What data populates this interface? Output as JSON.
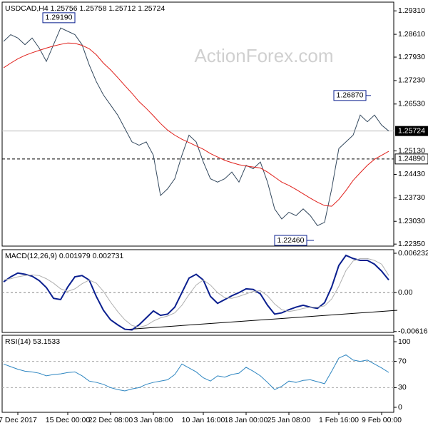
{
  "chart_data": [
    {
      "type": "line",
      "title": "USDCAD,H4  1.25756  1.25758  1.25712  1.25724",
      "watermark": "ActionForex.com",
      "ylim": [
        1.2229,
        1.2957
      ],
      "yticks": [
        {
          "value": 1.2931,
          "label": "1.29310"
        },
        {
          "value": 1.2861,
          "label": "1.28610"
        },
        {
          "value": 1.2793,
          "label": "1.27930"
        },
        {
          "value": 1.2723,
          "label": "1.27230"
        },
        {
          "value": 1.2653,
          "label": "1.26530"
        },
        {
          "value": 1.2513,
          "label": "1.25130"
        },
        {
          "value": 1.2443,
          "label": "1.24430"
        },
        {
          "value": 1.2373,
          "label": "1.23730"
        },
        {
          "value": 1.2303,
          "label": "1.23030"
        },
        {
          "value": 1.2235,
          "label": "1.22350"
        }
      ],
      "current": 1.25724,
      "hline": {
        "value": 1.2489,
        "label": "1.24890"
      },
      "annotations": [
        {
          "value": 1.2919,
          "label": "1.29190"
        },
        {
          "value": 1.2687,
          "label": "1.26870"
        },
        {
          "value": 1.2246,
          "label": "1.22460"
        }
      ],
      "series": [
        {
          "color": "#34495e",
          "values": [
            1.284,
            1.286,
            1.285,
            1.283,
            1.285,
            1.282,
            1.278,
            1.283,
            1.288,
            1.287,
            1.286,
            1.283,
            1.277,
            1.272,
            1.268,
            1.265,
            1.262,
            1.258,
            1.254,
            1.253,
            1.254,
            1.25,
            1.238,
            1.24,
            1.243,
            1.25,
            1.256,
            1.254,
            1.248,
            1.243,
            1.242,
            1.243,
            1.245,
            1.242,
            1.247,
            1.246,
            1.248,
            1.242,
            1.234,
            1.231,
            1.233,
            1.232,
            1.234,
            1.232,
            1.229,
            1.23,
            1.24,
            1.252,
            1.254,
            1.256,
            1.262,
            1.26,
            1.262,
            1.259,
            1.25724
          ]
        },
        {
          "color": "#e0201b",
          "values": [
            1.2761,
            1.2775,
            1.2788,
            1.2798,
            1.2806,
            1.2813,
            1.282,
            1.2826,
            1.2831,
            1.2835,
            1.2834,
            1.2828,
            1.2818,
            1.28,
            1.2775,
            1.2755,
            1.2732,
            1.2708,
            1.2685,
            1.266,
            1.264,
            1.2618,
            1.2595,
            1.2575,
            1.256,
            1.2548,
            1.2538,
            1.2528,
            1.2518,
            1.2505,
            1.2495,
            1.2485,
            1.2478,
            1.2472,
            1.2468,
            1.2465,
            1.2462,
            1.245,
            1.2435,
            1.242,
            1.241,
            1.2398,
            1.2385,
            1.2372,
            1.236,
            1.235,
            1.2348,
            1.2368,
            1.2395,
            1.2425,
            1.2448,
            1.247,
            1.2488,
            1.25,
            1.2512
          ]
        }
      ]
    },
    {
      "type": "line",
      "title": "MACD(12,26,9) 0.001979 0.002731",
      "ylim": [
        -0.0063,
        0.0068
      ],
      "yticks": [
        0.006232,
        {
          "value": 0,
          "label": "0.00"
        },
        -0.006163
      ],
      "series": [
        {
          "color": "#0a1f8f",
          "values": [
            0.0017,
            0.0025,
            0.0031,
            0.0029,
            0.0026,
            0.0019,
            0.0008,
            -0.0009,
            -0.0011,
            0.0009,
            0.0025,
            0.0027,
            0.002,
            -0.0006,
            -0.0028,
            -0.0043,
            -0.0051,
            -0.0058,
            -0.0059,
            -0.0051,
            -0.004,
            -0.0029,
            -0.0036,
            -0.0034,
            -0.0023,
            0,
            0.0023,
            0.0029,
            0.002,
            -0.0006,
            -0.0017,
            -0.0011,
            -0.0005,
            0,
            0.0006,
            0.0005,
            -0.0002,
            -0.002,
            -0.0034,
            -0.0032,
            -0.0027,
            -0.0023,
            -0.002,
            -0.0023,
            -0.0025,
            -0.0016,
            0.0009,
            0.0043,
            0.0059,
            0.0054,
            0.0051,
            0.0051,
            0.0045,
            0.0034,
            0.002
          ]
        },
        {
          "color": "#b0b0b0",
          "values": [
            0.002,
            0.0022,
            0.0025,
            0.0027,
            0.0028,
            0.0027,
            0.0022,
            0.0015,
            0.0006,
            0.0002,
            0.0006,
            0.0014,
            0.002,
            0.0015,
            0.0002,
            -0.0015,
            -0.003,
            -0.0043,
            -0.0052,
            -0.0055,
            -0.0052,
            -0.0045,
            -0.004,
            -0.0037,
            -0.0032,
            -0.002,
            -0.0003,
            0.0012,
            0.002,
            0.0012,
            0,
            -0.0008,
            -0.0009,
            -0.0006,
            -0.0002,
            0.0002,
            0.0003,
            -0.0005,
            -0.0018,
            -0.0027,
            -0.003,
            -0.0028,
            -0.0025,
            -0.0023,
            -0.0023,
            -0.0021,
            -0.001,
            0.001,
            0.0035,
            0.005,
            0.0054,
            0.0054,
            0.0051,
            0.0045,
            0.0027
          ]
        }
      ]
    },
    {
      "type": "line",
      "title": "RSI(14) 53.1533",
      "ylim": [
        -7.6,
        109.8
      ],
      "yticks": [
        100,
        70,
        30,
        0
      ],
      "levels": [
        70,
        30
      ],
      "categories": [
        null,
        null,
        "7 Dec 2017",
        null,
        null,
        null,
        null,
        null,
        null,
        "15 Dec 00:00",
        null,
        null,
        null,
        null,
        null,
        "22 Dec 08:00",
        null,
        null,
        null,
        null,
        null,
        "3 Jan 08:00",
        null,
        null,
        null,
        null,
        null,
        null,
        "10 Jan 16:00",
        null,
        null,
        null,
        null,
        null,
        "18 Jan 00:00",
        null,
        null,
        null,
        null,
        null,
        "25 Jan 08:00",
        null,
        null,
        null,
        null,
        null,
        null,
        "1 Feb 16:00",
        null,
        null,
        null,
        null,
        null,
        "9 Feb 00:00",
        null
      ],
      "series": [
        {
          "color": "#2e86c1",
          "values": [
            66,
            62,
            58,
            55,
            54,
            52,
            48,
            50,
            51,
            53,
            54,
            48,
            40,
            38,
            35,
            30,
            27,
            25,
            28,
            30,
            35,
            38,
            40,
            42,
            50,
            66,
            60,
            54,
            45,
            40,
            48,
            46,
            50,
            52,
            61,
            55,
            48,
            38,
            27,
            32,
            40,
            38,
            41,
            42,
            39,
            36,
            55,
            75,
            80,
            72,
            70,
            72,
            66,
            60,
            53.1533
          ]
        }
      ]
    }
  ]
}
